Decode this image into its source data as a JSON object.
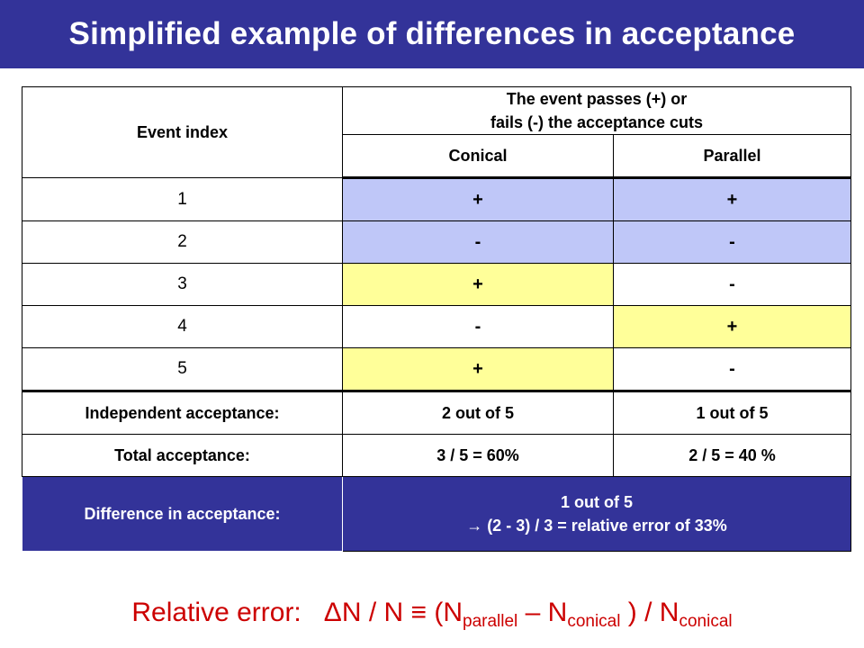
{
  "title": "Simplified example of differences in acceptance",
  "table": {
    "col_event": "Event index",
    "col_group_line1": "The event passes (+) or",
    "col_group_line2": "fails (-) the acceptance cuts",
    "col_conical": "Conical",
    "col_parallel": "Parallel",
    "rows": [
      {
        "index": "1",
        "conical": "+",
        "parallel": "+"
      },
      {
        "index": "2",
        "conical": "-",
        "parallel": "-"
      },
      {
        "index": "3",
        "conical": "+",
        "parallel": "-"
      },
      {
        "index": "4",
        "conical": "-",
        "parallel": "+"
      },
      {
        "index": "5",
        "conical": "+",
        "parallel": "-"
      }
    ],
    "independent": {
      "label": "Independent acceptance:",
      "conical": "2 out of 5",
      "parallel": "1 out of 5"
    },
    "total": {
      "label": "Total acceptance:",
      "conical": "3 / 5 = 60%",
      "parallel": "2 / 5 = 40 %"
    },
    "difference": {
      "label": "Difference in acceptance:",
      "line1": "1 out of 5",
      "line2": "→ (2 - 3) / 3 = relative error of 33%"
    }
  },
  "formula": {
    "prefix": "Relative error:",
    "expr_start": "ΔN / N ≡ (N",
    "sub_parallel": "parallel",
    "mid": " – N",
    "sub_conical1": "conical",
    "mid2": " ) / N",
    "sub_conical2": "conical"
  },
  "colors": {
    "header_blue": "#333399",
    "light_blue": "#bfc7f8",
    "yellow": "#ffff99",
    "formula_red": "#cc0000"
  }
}
